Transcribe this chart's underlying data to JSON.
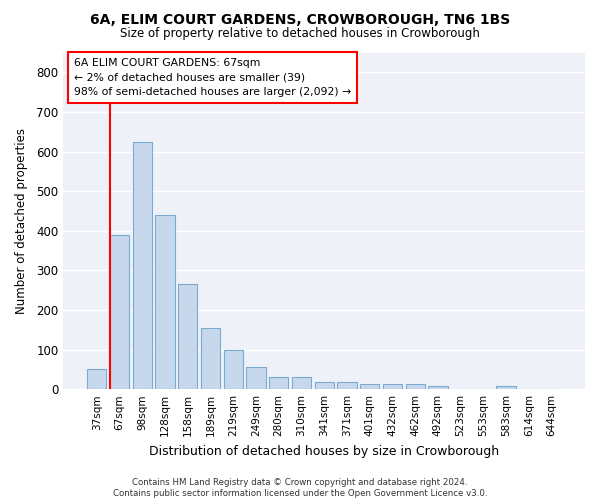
{
  "title": "6A, ELIM COURT GARDENS, CROWBOROUGH, TN6 1BS",
  "subtitle": "Size of property relative to detached houses in Crowborough",
  "xlabel": "Distribution of detached houses by size in Crowborough",
  "ylabel": "Number of detached properties",
  "categories": [
    "37sqm",
    "67sqm",
    "98sqm",
    "128sqm",
    "158sqm",
    "189sqm",
    "219sqm",
    "249sqm",
    "280sqm",
    "310sqm",
    "341sqm",
    "371sqm",
    "401sqm",
    "432sqm",
    "462sqm",
    "492sqm",
    "523sqm",
    "553sqm",
    "583sqm",
    "614sqm",
    "644sqm"
  ],
  "values": [
    50,
    390,
    625,
    440,
    265,
    155,
    98,
    55,
    30,
    30,
    18,
    18,
    13,
    13,
    13,
    8,
    0,
    0,
    8,
    0,
    0
  ],
  "bar_color": "#c8d8ec",
  "bar_edge_color": "#7aaad0",
  "redline_bar_index": 1,
  "annotation_text_line1": "6A ELIM COURT GARDENS: 67sqm",
  "annotation_text_line2": "← 2% of detached houses are smaller (39)",
  "annotation_text_line3": "98% of semi-detached houses are larger (2,092) →",
  "ylim": [
    0,
    850
  ],
  "yticks": [
    0,
    100,
    200,
    300,
    400,
    500,
    600,
    700,
    800
  ],
  "background_color": "#eef2f8",
  "grid_color": "#ffffff",
  "footer_line1": "Contains HM Land Registry data © Crown copyright and database right 2024.",
  "footer_line2": "Contains public sector information licensed under the Open Government Licence v3.0."
}
